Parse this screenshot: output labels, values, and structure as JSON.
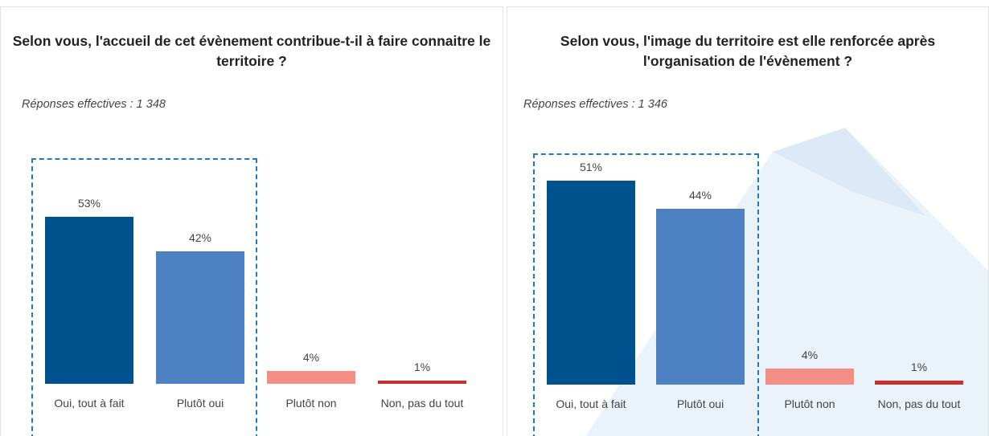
{
  "chart_data": [
    {
      "type": "bar",
      "title": "Selon vous, l'accueil de cet évènement contribue-t-il à faire connaitre le territoire ?",
      "subtitle": "Réponses effectives : 1 348",
      "categories": [
        "Oui, tout à fait",
        "Plutôt oui",
        "Plutôt non",
        "Non, pas du tout"
      ],
      "values": [
        53,
        42,
        4,
        1
      ],
      "value_labels": [
        "53%",
        "42%",
        "4%",
        "1%"
      ],
      "colors": [
        "#00528f",
        "#4d81c2",
        "#f28e84",
        "#c9302c"
      ]
    },
    {
      "type": "bar",
      "title": "Selon vous, l'image du territoire est elle renforcée après l'organisation de l'évènement ?",
      "subtitle": "Réponses effectives : 1 346",
      "categories": [
        "Oui, tout à fait",
        "Plutôt oui",
        "Plutôt non",
        "Non, pas du tout"
      ],
      "values": [
        51,
        44,
        4,
        1
      ],
      "value_labels": [
        "51%",
        "44%",
        "4%",
        "1%"
      ],
      "colors": [
        "#00528f",
        "#4d81c2",
        "#f28e84",
        "#c9302c"
      ]
    }
  ]
}
